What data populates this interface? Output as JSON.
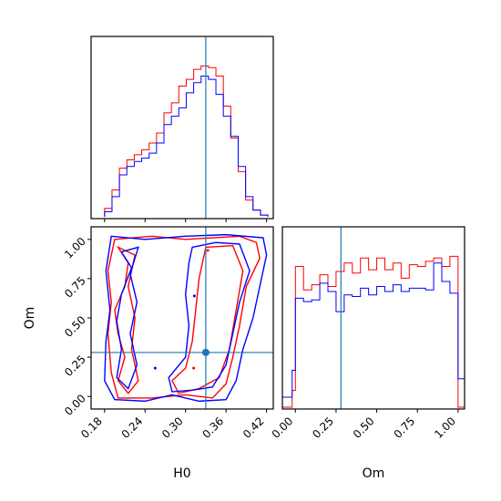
{
  "chart_data": {
    "type": "corner",
    "parameters": [
      "H0",
      "Om"
    ],
    "truth": {
      "H0": 0.33,
      "Om": 0.28
    },
    "colors": {
      "series_a": "#ff0000",
      "series_b": "#0000ff",
      "truth": "#1f77b4",
      "frame": "#000000"
    },
    "panels": [
      {
        "id": "hist-H0",
        "type": "step-histogram",
        "xlim": [
          0.16,
          0.43
        ],
        "bin_edges": [
          0.18,
          0.191,
          0.202,
          0.213,
          0.224,
          0.235,
          0.246,
          0.257,
          0.268,
          0.279,
          0.29,
          0.301,
          0.312,
          0.323,
          0.334,
          0.345,
          0.356,
          0.367,
          0.378,
          0.389,
          0.4,
          0.411,
          0.422
        ],
        "series": [
          {
            "color": "red",
            "values": [
              0.05,
              0.16,
              0.29,
              0.34,
              0.37,
              0.4,
              0.44,
              0.5,
              0.62,
              0.68,
              0.78,
              0.82,
              0.88,
              0.9,
              0.89,
              0.84,
              0.66,
              0.47,
              0.27,
              0.1,
              0.04,
              0.01
            ]
          },
          {
            "color": "blue",
            "values": [
              0.03,
              0.12,
              0.25,
              0.3,
              0.33,
              0.35,
              0.38,
              0.44,
              0.55,
              0.6,
              0.65,
              0.74,
              0.8,
              0.84,
              0.82,
              0.73,
              0.6,
              0.48,
              0.3,
              0.12,
              0.04,
              0.01
            ]
          }
        ],
        "x_tick_values": [
          0.18,
          0.24,
          0.3,
          0.36,
          0.42
        ]
      },
      {
        "id": "contour-H0-Om",
        "type": "contour",
        "xlim": [
          0.16,
          0.43
        ],
        "ylim": [
          -0.08,
          1.08
        ],
        "xlabel": "H0",
        "ylabel": "Om",
        "x_ticks": [
          "0.18",
          "0.24",
          "0.30",
          "0.36",
          "0.42"
        ],
        "x_tick_values": [
          0.18,
          0.24,
          0.3,
          0.36,
          0.42
        ],
        "y_ticks": [
          "0.00",
          "0.25",
          "0.50",
          "0.75",
          "1.00"
        ],
        "y_tick_values": [
          0.0,
          0.25,
          0.5,
          0.75,
          1.0
        ],
        "series": [
          {
            "color": "red",
            "contours": [
              [
                [
                  0.195,
                  1.0
                ],
                [
                  0.25,
                  1.02
                ],
                [
                  0.3,
                  1.0
                ],
                [
                  0.34,
                  1.01
                ],
                [
                  0.38,
                  1.02
                ],
                [
                  0.405,
                  0.98
                ],
                [
                  0.41,
                  0.88
                ],
                [
                  0.39,
                  0.7
                ],
                [
                  0.38,
                  0.45
                ],
                [
                  0.37,
                  0.25
                ],
                [
                  0.36,
                  0.08
                ],
                [
                  0.34,
                  -0.01
                ],
                [
                  0.3,
                  0.01
                ],
                [
                  0.25,
                  -0.01
                ],
                [
                  0.2,
                  -0.01
                ],
                [
                  0.19,
                  0.15
                ],
                [
                  0.185,
                  0.4
                ],
                [
                  0.19,
                  0.6
                ],
                [
                  0.185,
                  0.8
                ]
              ],
              [
                [
                  0.33,
                  0.95
                ],
                [
                  0.37,
                  0.96
                ],
                [
                  0.385,
                  0.8
                ],
                [
                  0.375,
                  0.55
                ],
                [
                  0.365,
                  0.3
                ],
                [
                  0.35,
                  0.12
                ],
                [
                  0.32,
                  0.05
                ],
                [
                  0.29,
                  0.02
                ],
                [
                  0.28,
                  0.1
                ],
                [
                  0.3,
                  0.18
                ],
                [
                  0.31,
                  0.35
                ],
                [
                  0.315,
                  0.55
                ],
                [
                  0.32,
                  0.75
                ]
              ],
              [
                [
                  0.2,
                  0.95
                ],
                [
                  0.215,
                  0.85
                ],
                [
                  0.21,
                  0.7
                ],
                [
                  0.195,
                  0.55
                ],
                [
                  0.2,
                  0.4
                ],
                [
                  0.21,
                  0.25
                ],
                [
                  0.2,
                  0.1
                ],
                [
                  0.215,
                  0.02
                ],
                [
                  0.23,
                  0.1
                ],
                [
                  0.22,
                  0.3
                ],
                [
                  0.225,
                  0.5
                ],
                [
                  0.215,
                  0.7
                ],
                [
                  0.225,
                  0.9
                ]
              ]
            ]
          },
          {
            "color": "blue",
            "contours": [
              [
                [
                  0.19,
                  1.02
                ],
                [
                  0.24,
                  1.0
                ],
                [
                  0.3,
                  1.02
                ],
                [
                  0.36,
                  1.03
                ],
                [
                  0.415,
                  1.01
                ],
                [
                  0.42,
                  0.9
                ],
                [
                  0.41,
                  0.7
                ],
                [
                  0.4,
                  0.5
                ],
                [
                  0.385,
                  0.3
                ],
                [
                  0.375,
                  0.1
                ],
                [
                  0.36,
                  -0.02
                ],
                [
                  0.32,
                  -0.03
                ],
                [
                  0.28,
                  0.01
                ],
                [
                  0.24,
                  -0.03
                ],
                [
                  0.195,
                  -0.02
                ],
                [
                  0.18,
                  0.1
                ],
                [
                  0.182,
                  0.35
                ],
                [
                  0.188,
                  0.55
                ],
                [
                  0.182,
                  0.8
                ]
              ],
              [
                [
                  0.31,
                  0.95
                ],
                [
                  0.345,
                  0.98
                ],
                [
                  0.38,
                  0.97
                ],
                [
                  0.395,
                  0.8
                ],
                [
                  0.38,
                  0.6
                ],
                [
                  0.37,
                  0.4
                ],
                [
                  0.36,
                  0.2
                ],
                [
                  0.34,
                  0.06
                ],
                [
                  0.31,
                  0.04
                ],
                [
                  0.28,
                  0.03
                ],
                [
                  0.275,
                  0.12
                ],
                [
                  0.3,
                  0.25
                ],
                [
                  0.305,
                  0.45
                ],
                [
                  0.3,
                  0.65
                ],
                [
                  0.305,
                  0.85
                ]
              ],
              [
                [
                  0.205,
                  0.92
                ],
                [
                  0.22,
                  0.82
                ],
                [
                  0.205,
                  0.65
                ],
                [
                  0.198,
                  0.48
                ],
                [
                  0.205,
                  0.3
                ],
                [
                  0.198,
                  0.12
                ],
                [
                  0.215,
                  0.05
                ],
                [
                  0.228,
                  0.2
                ],
                [
                  0.218,
                  0.4
                ],
                [
                  0.228,
                  0.6
                ],
                [
                  0.218,
                  0.78
                ],
                [
                  0.23,
                  0.95
                ]
              ]
            ]
          }
        ],
        "dots": [
          {
            "color": "red",
            "x": 0.333,
            "y": 0.93
          },
          {
            "color": "red",
            "x": 0.312,
            "y": 0.18
          },
          {
            "color": "blue",
            "x": 0.255,
            "y": 0.18
          },
          {
            "color": "blue",
            "x": 0.313,
            "y": 0.64
          }
        ]
      },
      {
        "id": "hist-Om",
        "type": "step-histogram",
        "xlim": [
          -0.08,
          1.04
        ],
        "xlabel": "Om",
        "bin_edges": [
          -0.08,
          -0.02,
          0.0,
          0.05,
          0.1,
          0.15,
          0.2,
          0.25,
          0.3,
          0.35,
          0.4,
          0.45,
          0.5,
          0.55,
          0.6,
          0.65,
          0.7,
          0.75,
          0.8,
          0.85,
          0.9,
          0.95,
          1.0,
          1.04
        ],
        "series": [
          {
            "color": "red",
            "values": [
              0.0,
              0.1,
              0.84,
              0.7,
              0.73,
              0.79,
              0.72,
              0.81,
              0.86,
              0.8,
              0.89,
              0.82,
              0.89,
              0.82,
              0.86,
              0.77,
              0.85,
              0.84,
              0.87,
              0.89,
              0.84,
              0.9,
              0.0
            ]
          },
          {
            "color": "blue",
            "values": [
              0.06,
              0.22,
              0.65,
              0.63,
              0.64,
              0.74,
              0.69,
              0.57,
              0.67,
              0.66,
              0.71,
              0.67,
              0.72,
              0.69,
              0.73,
              0.69,
              0.71,
              0.71,
              0.7,
              0.86,
              0.75,
              0.68,
              0.17
            ]
          }
        ],
        "x_ticks": [
          "0.00",
          "0.25",
          "0.50",
          "0.75",
          "1.00"
        ],
        "x_tick_values": [
          0.0,
          0.25,
          0.5,
          0.75,
          1.0
        ]
      }
    ]
  }
}
